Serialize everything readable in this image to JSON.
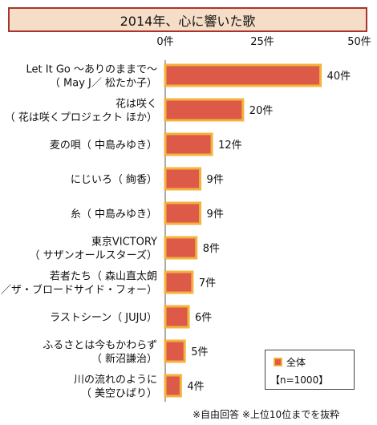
{
  "chart_data": {
    "type": "bar",
    "orientation": "horizontal",
    "title": "2014年、心に響いた歌",
    "categories": [
      [
        "Let It Go ～ありのままで～",
        "（ May J／ 松たか子）"
      ],
      [
        "花は咲く",
        "（ 花は咲くプロジェクト ほか）"
      ],
      [
        "麦の唄（ 中島みゆき）"
      ],
      [
        "にじいろ（ 絢香）"
      ],
      [
        "糸（ 中島みゆき）"
      ],
      [
        "東京VICTORY",
        "（ サザンオールスターズ）"
      ],
      [
        "若者たち（ 森山直太朗",
        "／ザ・ブロードサイド・フォー）"
      ],
      [
        "ラストシーン（ JUJU）"
      ],
      [
        "ふるさとは今もかわらず",
        "（ 新沼謙治）"
      ],
      [
        "川の流れのように",
        "（ 美空ひばり）"
      ]
    ],
    "values": [
      40,
      20,
      12,
      9,
      9,
      8,
      7,
      6,
      5,
      4
    ],
    "value_labels": [
      "40件",
      "20件",
      "12件",
      "9件",
      "9件",
      "8件",
      "7件",
      "6件",
      "5件",
      "4件"
    ],
    "xlim": [
      0,
      50
    ],
    "ticks": [
      {
        "value": 0,
        "label": "0件"
      },
      {
        "value": 25,
        "label": "25件"
      },
      {
        "value": 50,
        "label": "50件"
      }
    ],
    "series_name": "全体",
    "n_label": "【n=1000】",
    "legend_position": "bottom-right",
    "grid": false,
    "colors": {
      "bar_fill": "#dd5a49",
      "bar_border": "#f3b33d",
      "title_border": "#a9342b",
      "title_bg": "#f6ddc7"
    }
  },
  "footnote": "※自由回答 ※上位10位までを抜粋"
}
